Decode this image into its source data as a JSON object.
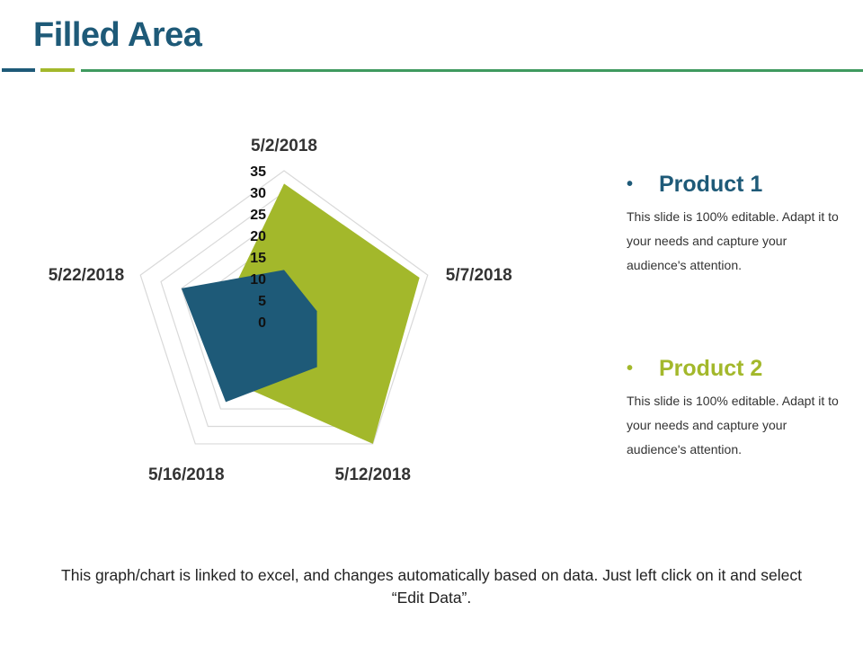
{
  "slide": {
    "title": "Filled Area",
    "footer": "This graph/chart is linked to excel, and changes automatically based on data. Just left click on it and select “Edit Data”."
  },
  "colors": {
    "title": "#1e5a78",
    "product1": "#1e5a78",
    "product2": "#a3b82b",
    "accent_rule": "#3f9a5f"
  },
  "legend": [
    {
      "bullet": "•",
      "name": "Product 1",
      "color": "#1e5a78",
      "desc": "This slide is 100% editable. Adapt it to your needs and capture your audience's attention."
    },
    {
      "bullet": "•",
      "name": "Product 2",
      "color": "#a3b82b",
      "desc": "This slide is 100% editable. Adapt it to your needs and capture your audience's attention."
    }
  ],
  "chart_data": {
    "type": "radar",
    "subtype": "filled",
    "categories": [
      "5/2/2018",
      "5/7/2018",
      "5/12/2018",
      "5/16/2018",
      "5/22/2018"
    ],
    "radial_ticks": [
      "35",
      "30",
      "25",
      "20",
      "15",
      "10",
      "5",
      "0"
    ],
    "rlim": [
      0,
      35
    ],
    "grid": true,
    "legend": "none",
    "series": [
      {
        "name": "Product 2",
        "color": "#a3b82b",
        "values": [
          32,
          33,
          35,
          18,
          14
        ]
      },
      {
        "name": "Product 1",
        "color": "#1e5a78",
        "values": [
          12,
          8,
          13,
          23,
          25
        ]
      }
    ]
  }
}
